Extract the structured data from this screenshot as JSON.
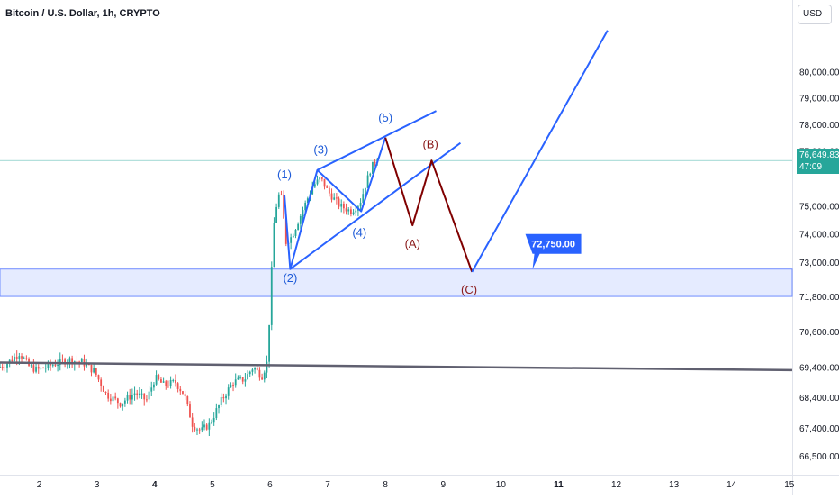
{
  "header": {
    "symbol": "Bitcoin / U.S. Dollar, 1h, CRYPTO",
    "currency_button": "USD"
  },
  "price_tag": {
    "price": "76,649.83",
    "countdown": "47:09"
  },
  "chart_data": {
    "type": "candlestick",
    "title": "Bitcoin / U.S. Dollar, 1h, CRYPTO",
    "x_axis": {
      "unit": "day",
      "tick_labels": [
        "2",
        "3",
        "4",
        "5",
        "6",
        "7",
        "8",
        "9",
        "10",
        "11",
        "12",
        "13",
        "14",
        "15"
      ],
      "tick_values": [
        2,
        3,
        4,
        5,
        6,
        7,
        8,
        9,
        10,
        11,
        12,
        13,
        14,
        15
      ],
      "range": [
        1.32,
        15.05
      ]
    },
    "y_axis": {
      "scale": "log",
      "side": "right",
      "tick_labels": [
        "80,000.00",
        "79,000.00",
        "78,000.00",
        "77,000.00",
        "75,000.00",
        "74,000.00",
        "73,000.00",
        "71,800.00",
        "70,600.00",
        "69,400.00",
        "68,400.00",
        "67,400.00",
        "66,500.00"
      ],
      "tick_values": [
        80000,
        79000,
        78000,
        77000,
        75000,
        74000,
        73000,
        71800,
        70600,
        69400,
        68400,
        67400,
        66500
      ],
      "range": [
        65900,
        82800
      ]
    },
    "current_price": 76649.83,
    "candle_path": [
      [
        1.32,
        69380
      ],
      [
        1.5,
        69550
      ],
      [
        1.7,
        69880
      ],
      [
        1.85,
        69450
      ],
      [
        2.0,
        69300
      ],
      [
        2.3,
        69500
      ],
      [
        2.55,
        69650
      ],
      [
        2.8,
        69550
      ],
      [
        3.0,
        69250
      ],
      [
        3.2,
        68500
      ],
      [
        3.45,
        68200
      ],
      [
        3.7,
        68550
      ],
      [
        3.9,
        68300
      ],
      [
        4.05,
        69050
      ],
      [
        4.2,
        68800
      ],
      [
        4.4,
        68900
      ],
      [
        4.55,
        68500
      ],
      [
        4.7,
        67500
      ],
      [
        4.85,
        67300
      ],
      [
        5.0,
        67550
      ],
      [
        5.2,
        68300
      ],
      [
        5.4,
        68900
      ],
      [
        5.6,
        69000
      ],
      [
        5.75,
        69400
      ],
      [
        5.9,
        69100
      ],
      [
        6.0,
        69600
      ],
      [
        6.05,
        71900
      ],
      [
        6.12,
        74700
      ],
      [
        6.22,
        75600
      ],
      [
        6.32,
        73700
      ],
      [
        6.42,
        73900
      ],
      [
        6.58,
        74700
      ],
      [
        6.78,
        75700
      ],
      [
        6.92,
        76000
      ],
      [
        7.05,
        75500
      ],
      [
        7.25,
        75000
      ],
      [
        7.45,
        74800
      ],
      [
        7.6,
        75100
      ],
      [
        7.78,
        76300
      ],
      [
        7.9,
        76800
      ]
    ],
    "wave_labels": [
      {
        "label": "(1)",
        "x": 6.25,
        "y": 76000,
        "color": "#1e5bd8"
      },
      {
        "label": "(2)",
        "x": 6.35,
        "y": 72300,
        "color": "#1e5bd8"
      },
      {
        "label": "(3)",
        "x": 6.88,
        "y": 76900,
        "color": "#1e5bd8"
      },
      {
        "label": "(4)",
        "x": 7.55,
        "y": 73900,
        "color": "#1e5bd8"
      },
      {
        "label": "(5)",
        "x": 8.0,
        "y": 78100,
        "color": "#1e5bd8"
      },
      {
        "label": "(A)",
        "x": 8.47,
        "y": 73500,
        "color": "#8b1a1a"
      },
      {
        "label": "(B)",
        "x": 8.78,
        "y": 77100,
        "color": "#8b1a1a"
      },
      {
        "label": "(C)",
        "x": 9.45,
        "y": 71900,
        "color": "#8b1a1a"
      }
    ],
    "impulse_wave": [
      [
        6.25,
        75400
      ],
      [
        6.35,
        72750
      ],
      [
        6.82,
        76300
      ],
      [
        7.58,
        74800
      ],
      [
        8.0,
        77500
      ]
    ],
    "correction_wave": [
      [
        8.0,
        77500
      ],
      [
        8.47,
        74300
      ],
      [
        8.8,
        76650
      ],
      [
        9.5,
        72650
      ]
    ],
    "projection": [
      [
        9.5,
        72650
      ],
      [
        11.85,
        81600
      ]
    ],
    "channel_upper": [
      [
        6.82,
        76300
      ],
      [
        8.88,
        78500
      ]
    ],
    "channel_lower": [
      [
        6.35,
        72750
      ],
      [
        9.3,
        77300
      ]
    ],
    "trendline": [
      [
        1.32,
        69550
      ],
      [
        15.05,
        69300
      ]
    ],
    "support_zone": {
      "low": 71800,
      "high": 72750,
      "color": "#e0e7ff"
    },
    "callout": {
      "label": "72,750.00",
      "x": 10.3,
      "y": 72750,
      "color": "#2962ff"
    },
    "colors": {
      "up": "#26a69a",
      "down": "#ef5350",
      "wave_blue": "#2962ff",
      "wave_red": "#800000",
      "trendline": "#606070",
      "price_line": "#26a69a"
    }
  }
}
